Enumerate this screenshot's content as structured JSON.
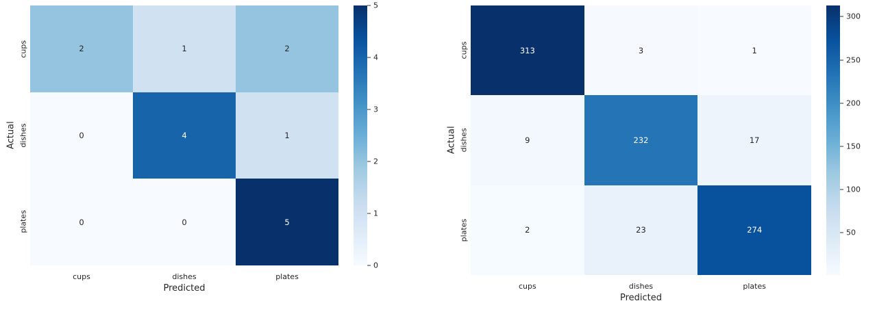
{
  "palette": {
    "name": "Blues",
    "stops": [
      [
        0.0,
        "#f7fbff"
      ],
      [
        0.125,
        "#deebf7"
      ],
      [
        0.25,
        "#c6dbef"
      ],
      [
        0.375,
        "#9ecae1"
      ],
      [
        0.5,
        "#6baed6"
      ],
      [
        0.625,
        "#4292c6"
      ],
      [
        0.75,
        "#2171b5"
      ],
      [
        0.875,
        "#08519c"
      ],
      [
        1.0,
        "#08306b"
      ]
    ],
    "annotation_dark_text": "#262626",
    "annotation_light_text": "#ffffff"
  },
  "chart_data": [
    {
      "type": "heatmap",
      "title": "",
      "xlabel": "Predicted",
      "ylabel": "Actual",
      "x_categories": [
        "cups",
        "dishes",
        "plates"
      ],
      "y_categories": [
        "cups",
        "dishes",
        "plates"
      ],
      "matrix": [
        [
          2,
          1,
          2
        ],
        [
          0,
          4,
          1
        ],
        [
          0,
          0,
          5
        ]
      ],
      "vmin": 0,
      "vmax": 5,
      "colorbar_ticks": [
        0,
        1,
        2,
        3,
        4,
        5
      ],
      "legend_position": "right-colorbar",
      "grid": false
    },
    {
      "type": "heatmap",
      "title": "",
      "xlabel": "Predicted",
      "ylabel": "Actual",
      "x_categories": [
        "cups",
        "dishes",
        "plates"
      ],
      "y_categories": [
        "cups",
        "dishes",
        "plates"
      ],
      "matrix": [
        [
          313,
          3,
          1
        ],
        [
          9,
          232,
          17
        ],
        [
          2,
          23,
          274
        ]
      ],
      "vmin": 1,
      "vmax": 313,
      "colorbar_ticks": [
        50,
        100,
        150,
        200,
        250,
        300
      ],
      "legend_position": "right-colorbar",
      "grid": false
    }
  ]
}
